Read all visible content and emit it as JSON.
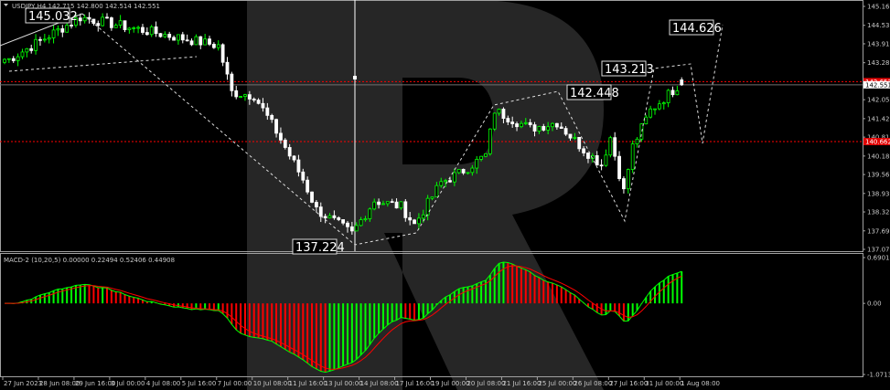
{
  "header": {
    "symbol_line": "USDJPY,H4  142.715 142.800 142.514 142.551"
  },
  "macd_header": "MACD-2 (10,20,5) 0.00000 0.22494 0.52406 0.44908",
  "colors": {
    "background": "#000000",
    "bull": "#00ff00",
    "bear": "#ffffff",
    "macd_hist_up": "#00ff00",
    "macd_hist_down": "#ff0000",
    "macd_line": "#00ff00",
    "signal_line": "#ff0000",
    "level_line": "#ff0000",
    "watermark": "#262626"
  },
  "price_axis": {
    "ticks": [
      "145.160",
      "144.530",
      "143.915",
      "143.285",
      "142.055",
      "141.425",
      "140.810",
      "140.180",
      "139.565",
      "138.935",
      "138.320",
      "137.690",
      "137.075"
    ],
    "range": [
      137.075,
      145.16
    ]
  },
  "price_tags": {
    "level_upper": "142.657",
    "current": "142.551",
    "level_lower": "140.662"
  },
  "macd_axis": {
    "ticks": [
      "0.69011",
      "0.00",
      "-1.07134"
    ],
    "range": [
      -1.07134,
      0.69011
    ]
  },
  "time_axis": [
    "27 Jun 2023",
    "28 Jun 08:00",
    "29 Jun 16:00",
    "3 Jul 00:00",
    "4 Jul 08:00",
    "5 Jul 16:00",
    "7 Jul 00:00",
    "10 Jul 08:00",
    "11 Jul 16:00",
    "13 Jul 00:00",
    "14 Jul 08:00",
    "17 Jul 16:00",
    "19 Jul 00:00",
    "20 Jul 08:00",
    "21 Jul 16:00",
    "25 Jul 00:00",
    "26 Jul 08:00",
    "27 Jul 16:00",
    "31 Jul 00:00",
    "1 Aug 08:00"
  ],
  "annotations": [
    "145.032",
    "137.224",
    "142.448",
    "143.213",
    "144.626"
  ],
  "chart_data": {
    "type": "candlestick",
    "title": "USDJPY,H4",
    "timeframe": "H4",
    "ylim": [
      137.075,
      145.16
    ],
    "grid": false,
    "key_closes": [
      [
        "2023-06-27 04:00",
        143.4
      ],
      [
        "2023-06-29 20:00",
        144.8
      ],
      [
        "2023-07-04 00:00",
        144.4
      ],
      [
        "2023-07-07 00:00",
        143.85
      ],
      [
        "2023-07-07 12:00",
        142.3
      ],
      [
        "2023-07-10 08:00",
        142.2
      ],
      [
        "2023-07-11 04:00",
        141.0
      ],
      [
        "2023-07-12 04:00",
        139.4
      ],
      [
        "2023-07-12 16:00",
        138.4
      ],
      [
        "2023-07-14 00:00",
        137.6
      ],
      [
        "2023-07-14 20:00",
        138.7
      ],
      [
        "2023-07-17 20:00",
        138.5
      ],
      [
        "2023-07-18 08:00",
        137.9
      ],
      [
        "2023-07-19 08:00",
        139.3
      ],
      [
        "2023-07-20 00:00",
        139.6
      ],
      [
        "2023-07-21 00:00",
        140.2
      ],
      [
        "2023-07-21 08:00",
        141.7
      ],
      [
        "2023-07-24 00:00",
        141.4
      ],
      [
        "2023-07-24 16:00",
        141.1
      ],
      [
        "2023-07-25 16:00",
        141.3
      ],
      [
        "2023-07-26 16:00",
        140.4
      ],
      [
        "2023-07-27 08:00",
        139.9
      ],
      [
        "2023-07-27 16:00",
        140.8
      ],
      [
        "2023-07-28 04:00",
        139.0
      ],
      [
        "2023-07-28 12:00",
        140.5
      ],
      [
        "2023-07-31 04:00",
        141.7
      ],
      [
        "2023-08-01 04:00",
        142.5
      ],
      [
        "2023-08-01 08:00",
        142.551
      ]
    ],
    "last": {
      "open": 142.715,
      "high": 142.8,
      "low": 142.514,
      "close": 142.551
    },
    "horizontal_levels": [
      142.657,
      140.662
    ],
    "indicator": {
      "name": "MACD",
      "params": [
        10,
        20,
        5
      ],
      "ylim": [
        -1.07134,
        0.69011
      ]
    }
  }
}
